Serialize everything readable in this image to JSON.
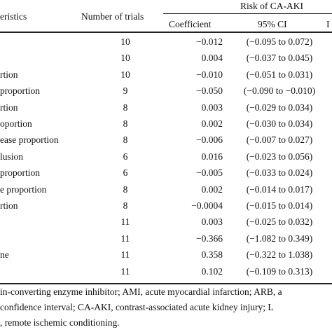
{
  "table": {
    "headers": {
      "characteristics": "eristics",
      "number_of_trials": "Number of trials",
      "risk_group": "Risk of CA-AKI",
      "coefficient": "Coefficient",
      "ci": "95% CI",
      "cut_col": "I"
    },
    "rows": [
      {
        "label": "",
        "trials": "10",
        "coef": "−0.012",
        "ci": "(−0.095 to 0.072)"
      },
      {
        "label": "",
        "trials": "10",
        "coef": "0.004",
        "ci": "(−0.037 to 0.045)"
      },
      {
        "label": "rtion",
        "trials": "10",
        "coef": "−0.010",
        "ci": "(−0.051 to 0.031)"
      },
      {
        "label": "proportion",
        "trials": "9",
        "coef": "−0.050",
        "ci": "(−0.090 to −0.010)"
      },
      {
        "label": "rtion",
        "trials": "8",
        "coef": "0.003",
        "ci": "(−0.029 to 0.034)"
      },
      {
        "label": "oportion",
        "trials": "8",
        "coef": "0.002",
        "ci": "(−0.030 to 0.034)"
      },
      {
        "label": "ease proportion",
        "trials": "8",
        "coef": "−0.006",
        "ci": "(−0.007 to 0.027)"
      },
      {
        "label": "lusion",
        "trials": "6",
        "coef": "0.016",
        "ci": "(−0.023 to 0.056)"
      },
      {
        "label": "proportion",
        "trials": "6",
        "coef": "−0.005",
        "ci": "(−0.033 to 0.024)"
      },
      {
        "label": "e proportion",
        "trials": "8",
        "coef": "0.002",
        "ci": "(−0.014 to 0.017)"
      },
      {
        "label": "rtion",
        "trials": "8",
        "coef": "−0.0004",
        "ci": "(−0.015 to 0.014)"
      },
      {
        "label": "",
        "trials": "11",
        "coef": "0.003",
        "ci": "(−0.025 to 0.032)"
      },
      {
        "label": "",
        "trials": "11",
        "coef": "−0.366",
        "ci": "(−1.082 to 0.349)"
      },
      {
        "label": "ne",
        "trials": "11",
        "coef": "0.358",
        "ci": "(−0.322 to 1.038)"
      },
      {
        "label": "",
        "trials": "11",
        "coef": "0.102",
        "ci": "(−0.109 to 0.313)"
      }
    ]
  },
  "footnote": {
    "line1": "in-converting enzyme inhibitor; AMI, acute myocardial infarction; ARB, a",
    "line2": " confidence interval; CA-AKI, contrast-associated acute kidney injury; L",
    "line3": ", remote ischemic conditioning."
  }
}
